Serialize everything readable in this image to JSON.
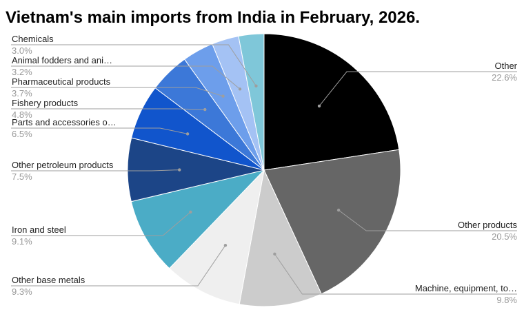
{
  "chart_data": {
    "type": "pie",
    "title": "Vietnam's main imports from India in February, 2026.",
    "slices": [
      {
        "label": "Other",
        "display": "Other",
        "value": 22.6,
        "value_label": "22.6%",
        "color": "#000000"
      },
      {
        "label": "Other products",
        "display": "Other products",
        "value": 20.5,
        "value_label": "20.5%",
        "color": "#666666"
      },
      {
        "label": "Machine, equipment, tools",
        "display": "Machine, equipment, to…",
        "value": 9.8,
        "value_label": "9.8%",
        "color": "#cccccc"
      },
      {
        "label": "Other base metals",
        "display": "Other base metals",
        "value": 9.3,
        "value_label": "9.3%",
        "color": "#efefef"
      },
      {
        "label": "Iron and steel",
        "display": "Iron and steel",
        "value": 9.1,
        "value_label": "9.1%",
        "color": "#4bacc6"
      },
      {
        "label": "Other petroleum products",
        "display": "Other petroleum products",
        "value": 7.5,
        "value_label": "7.5%",
        "color": "#1c4587"
      },
      {
        "label": "Parts and accessories of vehicles",
        "display": "Parts and accessories o…",
        "value": 6.5,
        "value_label": "6.5%",
        "color": "#1155cc"
      },
      {
        "label": "Fishery products",
        "display": "Fishery products",
        "value": 4.8,
        "value_label": "4.8%",
        "color": "#3c78d8"
      },
      {
        "label": "Pharmaceutical products",
        "display": "Pharmaceutical products",
        "value": 3.7,
        "value_label": "3.7%",
        "color": "#6d9eeb"
      },
      {
        "label": "Animal fodders and animal fodder materials",
        "display": "Animal fodders and ani…",
        "value": 3.2,
        "value_label": "3.2%",
        "color": "#a4c2f4"
      },
      {
        "label": "Chemicals",
        "display": "Chemicals",
        "value": 3.0,
        "value_label": "3.0%",
        "color": "#7fc7d9"
      }
    ]
  }
}
